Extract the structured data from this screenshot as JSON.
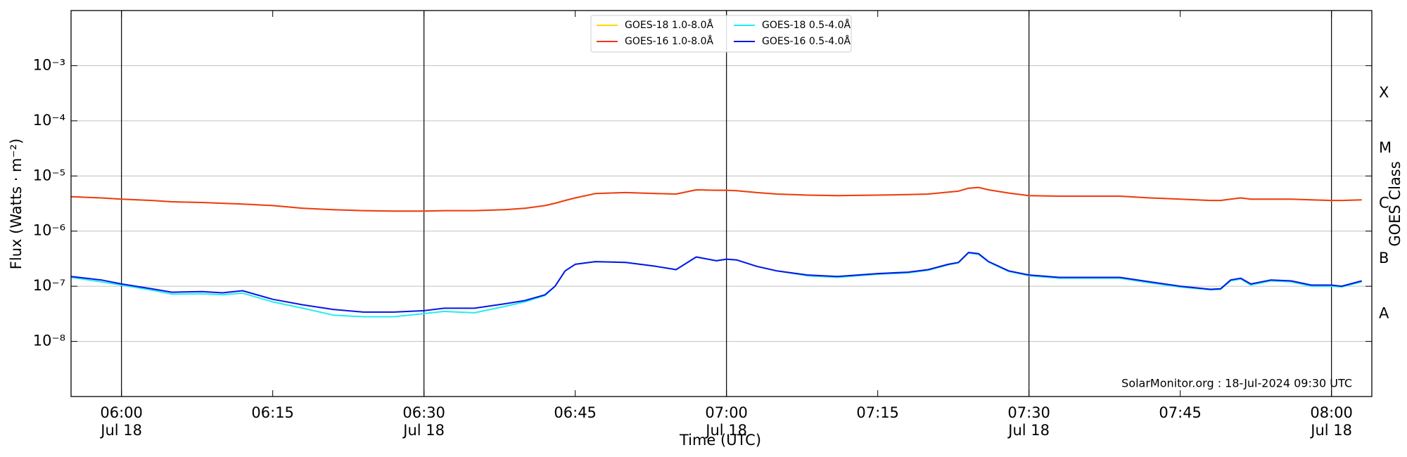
{
  "chart_data": {
    "type": "line",
    "x_label": "Time (UTC)",
    "y_label": "Flux (Watts · m⁻²)",
    "y2_label": "GOES Class",
    "annotation": "SolarMonitor.org : 18-Jul-2024 09:30 UTC",
    "log_y": true,
    "grid": true,
    "legend": "upper center",
    "xlim": [
      "05:55",
      "08:04"
    ],
    "ylim": [
      1e-09,
      0.01
    ],
    "y2lim": [
      1e-09,
      0.01
    ],
    "yticks": [
      {
        "value": 1e-08,
        "label": "10⁻⁸"
      },
      {
        "value": 1e-07,
        "label": "10⁻⁷"
      },
      {
        "value": 1e-06,
        "label": "10⁻⁶"
      },
      {
        "value": 1e-05,
        "label": "10⁻⁵"
      },
      {
        "value": 0.0001,
        "label": "10⁻⁴"
      },
      {
        "value": 0.001,
        "label": "10⁻³"
      }
    ],
    "y2ticks": [
      {
        "value": 3.162e-08,
        "label": "A"
      },
      {
        "value": 3.162e-07,
        "label": "B"
      },
      {
        "value": 3.162e-06,
        "label": "C"
      },
      {
        "value": 3.162e-05,
        "label": "M"
      },
      {
        "value": 0.0003162,
        "label": "X"
      }
    ],
    "xticks": [
      {
        "value": "06:00",
        "label": [
          "06:00",
          "Jul 18"
        ]
      },
      {
        "value": "06:15",
        "label": [
          "06:15"
        ]
      },
      {
        "value": "06:30",
        "label": [
          "06:30",
          "Jul 18"
        ]
      },
      {
        "value": "06:45",
        "label": [
          "06:45"
        ]
      },
      {
        "value": "07:00",
        "label": [
          "07:00",
          "Jul 18"
        ]
      },
      {
        "value": "07:15",
        "label": [
          "07:15"
        ]
      },
      {
        "value": "07:30",
        "label": [
          "07:30",
          "Jul 18"
        ]
      },
      {
        "value": "07:45",
        "label": [
          "07:45"
        ]
      },
      {
        "value": "08:00",
        "label": [
          "08:00",
          "Jul 18"
        ]
      }
    ],
    "vlines": [
      "06:00",
      "06:30",
      "07:00",
      "07:30",
      "08:00"
    ],
    "x": [
      "05:55",
      "05:58",
      "06:00",
      "06:03",
      "06:05",
      "06:08",
      "06:10",
      "06:12",
      "06:15",
      "06:18",
      "06:21",
      "06:24",
      "06:27",
      "06:30",
      "06:32",
      "06:35",
      "06:38",
      "06:40",
      "06:42",
      "06:43",
      "06:44",
      "06:45",
      "06:47",
      "06:50",
      "06:53",
      "06:55",
      "06:57",
      "06:59",
      "07:00",
      "07:01",
      "07:03",
      "07:05",
      "07:08",
      "07:11",
      "07:15",
      "07:18",
      "07:20",
      "07:22",
      "07:23",
      "07:24",
      "07:25",
      "07:26",
      "07:28",
      "07:30",
      "07:33",
      "07:36",
      "07:39",
      "07:42",
      "07:45",
      "07:48",
      "07:49",
      "07:50",
      "07:51",
      "07:52",
      "07:54",
      "07:56",
      "07:58",
      "08:00",
      "08:01",
      "08:03"
    ],
    "series": [
      {
        "name": "GOES-18 1.0-8.0Å",
        "color": "#ffd700",
        "values": [
          4.2e-06,
          4e-06,
          3.8e-06,
          3.6e-06,
          3.4e-06,
          3.3e-06,
          3.2e-06,
          3.1e-06,
          2.9e-06,
          2.6e-06,
          2.45e-06,
          2.35e-06,
          2.3e-06,
          2.3e-06,
          2.35e-06,
          2.35e-06,
          2.45e-06,
          2.6e-06,
          2.9e-06,
          3.2e-06,
          3.6e-06,
          4e-06,
          4.8e-06,
          5e-06,
          4.8e-06,
          4.7e-06,
          5.6e-06,
          5.5e-06,
          5.5e-06,
          5.4e-06,
          5e-06,
          4.7e-06,
          4.5e-06,
          4.4e-06,
          4.5e-06,
          4.6e-06,
          4.7e-06,
          5.1e-06,
          5.3e-06,
          6e-06,
          6.2e-06,
          5.6e-06,
          4.9e-06,
          4.4e-06,
          4.3e-06,
          4.3e-06,
          4.3e-06,
          4e-06,
          3.8e-06,
          3.6e-06,
          3.6e-06,
          3.8e-06,
          4e-06,
          3.8e-06,
          3.8e-06,
          3.8e-06,
          3.7e-06,
          3.6e-06,
          3.6e-06,
          3.7e-06
        ]
      },
      {
        "name": "GOES-16 1.0-8.0Å",
        "color": "#ee3a1c",
        "values": [
          4.2e-06,
          4e-06,
          3.8e-06,
          3.6e-06,
          3.4e-06,
          3.3e-06,
          3.2e-06,
          3.1e-06,
          2.9e-06,
          2.6e-06,
          2.45e-06,
          2.35e-06,
          2.3e-06,
          2.3e-06,
          2.35e-06,
          2.35e-06,
          2.45e-06,
          2.6e-06,
          2.9e-06,
          3.2e-06,
          3.6e-06,
          4e-06,
          4.8e-06,
          5e-06,
          4.8e-06,
          4.7e-06,
          5.6e-06,
          5.5e-06,
          5.5e-06,
          5.4e-06,
          5e-06,
          4.7e-06,
          4.5e-06,
          4.4e-06,
          4.5e-06,
          4.6e-06,
          4.7e-06,
          5.1e-06,
          5.3e-06,
          6e-06,
          6.2e-06,
          5.6e-06,
          4.9e-06,
          4.4e-06,
          4.3e-06,
          4.3e-06,
          4.3e-06,
          4e-06,
          3.8e-06,
          3.6e-06,
          3.6e-06,
          3.8e-06,
          4e-06,
          3.8e-06,
          3.8e-06,
          3.8e-06,
          3.7e-06,
          3.6e-06,
          3.6e-06,
          3.7e-06
        ]
      },
      {
        "name": "GOES-18 0.5-4.0Å",
        "color": "#22eeee",
        "values": [
          1.45e-07,
          1.2e-07,
          1.05e-07,
          8.5e-08,
          7.2e-08,
          7.3e-08,
          7e-08,
          7.5e-08,
          5.2e-08,
          4e-08,
          3e-08,
          2.8e-08,
          2.8e-08,
          3.2e-08,
          3.5e-08,
          3.3e-08,
          4.3e-08,
          5.2e-08,
          6.8e-08,
          1e-07,
          1.9e-07,
          2.5e-07,
          2.8e-07,
          2.7e-07,
          2.3e-07,
          2e-07,
          3.4e-07,
          2.9e-07,
          3.1e-07,
          3e-07,
          2.3e-07,
          1.9e-07,
          1.55e-07,
          1.45e-07,
          1.65e-07,
          1.75e-07,
          1.95e-07,
          2.45e-07,
          2.65e-07,
          4e-07,
          3.8e-07,
          2.75e-07,
          1.85e-07,
          1.55e-07,
          1.4e-07,
          1.4e-07,
          1.4e-07,
          1.15e-07,
          9.7e-08,
          8.6e-08,
          8.8e-08,
          1.25e-07,
          1.35e-07,
          1.05e-07,
          1.25e-07,
          1.2e-07,
          1e-07,
          1e-07,
          9.7e-08,
          1.2e-07
        ]
      },
      {
        "name": "GOES-16 0.5-4.0Å",
        "color": "#0a14e6",
        "values": [
          1.5e-07,
          1.3e-07,
          1.1e-07,
          9e-08,
          7.8e-08,
          8e-08,
          7.6e-08,
          8.3e-08,
          5.8e-08,
          4.6e-08,
          3.8e-08,
          3.4e-08,
          3.4e-08,
          3.6e-08,
          4e-08,
          4e-08,
          4.8e-08,
          5.5e-08,
          7e-08,
          1e-07,
          1.9e-07,
          2.5e-07,
          2.8e-07,
          2.7e-07,
          2.3e-07,
          2e-07,
          3.4e-07,
          2.9e-07,
          3.1e-07,
          3e-07,
          2.3e-07,
          1.9e-07,
          1.6e-07,
          1.5e-07,
          1.7e-07,
          1.8e-07,
          2e-07,
          2.5e-07,
          2.7e-07,
          4.1e-07,
          3.9e-07,
          2.8e-07,
          1.9e-07,
          1.6e-07,
          1.45e-07,
          1.45e-07,
          1.45e-07,
          1.2e-07,
          1e-07,
          8.8e-08,
          9e-08,
          1.3e-07,
          1.4e-07,
          1.1e-07,
          1.3e-07,
          1.25e-07,
          1.05e-07,
          1.05e-07,
          1e-07,
          1.25e-07
        ]
      }
    ]
  }
}
